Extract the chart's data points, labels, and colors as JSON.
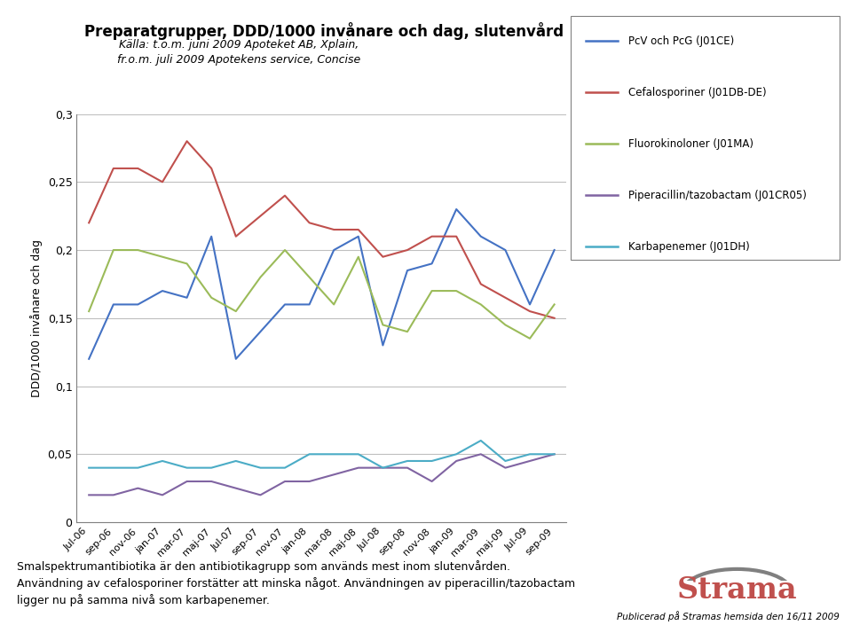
{
  "title": "Preparatgrupper, DDD/1000 invånare och dag, slutenvård",
  "subtitle1": "Källa: t.o.m. juni 2009 Apoteket AB, Xplain,",
  "subtitle2": "fr.o.m. juli 2009 Apotekens service, Concise",
  "ylabel": "DDD/1000 invånare och dag",
  "ylim": [
    0,
    0.3
  ],
  "yticks": [
    0,
    0.05,
    0.1,
    0.15,
    0.2,
    0.25,
    0.3
  ],
  "ytick_labels": [
    "0",
    "0,05",
    "0,1",
    "0,15",
    "0,2",
    "0,25",
    "0,3"
  ],
  "footer_line1": "Smalspektrumantibiotika är den antibiotikagrupp som används mest inom slutenvården.",
  "footer_line2": "Användning av cefalosporiner forstätter att minska något. Användningen av piperacillin/tazobactam",
  "footer_line3": "ligger nu på samma nivå som karbapenemer.",
  "published": "Publicerad på Stramas hemsida den 16/11 2009",
  "x_labels": [
    "Jul-06",
    "sep-06",
    "nov-06",
    "jan-07",
    "mar-07",
    "maj-07",
    "Jul-07",
    "sep-07",
    "nov-07",
    "jan-08",
    "mar-08",
    "maj-08",
    "Jul-08",
    "sep-08",
    "nov-08",
    "jan-09",
    "mar-09",
    "maj-09",
    "Jul-09",
    "sep-09"
  ],
  "series": {
    "PcV och PcG (J01CE)": {
      "color": "#4472C4",
      "values": [
        0.12,
        0.16,
        0.16,
        0.17,
        0.165,
        0.21,
        0.12,
        0.14,
        0.16,
        0.16,
        0.2,
        0.21,
        0.13,
        0.185,
        0.19,
        0.23,
        0.21,
        0.2,
        0.16,
        0.2
      ]
    },
    "Cefalosporiner (J01DB-DE)": {
      "color": "#C0504D",
      "values": [
        0.22,
        0.26,
        0.26,
        0.25,
        0.28,
        0.26,
        0.21,
        0.225,
        0.24,
        0.22,
        0.215,
        0.215,
        0.195,
        0.2,
        0.21,
        0.21,
        0.175,
        0.165,
        0.155,
        0.15
      ]
    },
    "Fluorokinoloner (J01MA)": {
      "color": "#9BBB59",
      "values": [
        0.155,
        0.2,
        0.2,
        0.195,
        0.19,
        0.165,
        0.155,
        0.18,
        0.2,
        0.18,
        0.16,
        0.195,
        0.145,
        0.14,
        0.17,
        0.17,
        0.16,
        0.145,
        0.135,
        0.16
      ]
    },
    "Piperacillin/tazobactam (J01CR05)": {
      "color": "#8064A2",
      "values": [
        0.02,
        0.02,
        0.025,
        0.02,
        0.03,
        0.03,
        0.025,
        0.02,
        0.03,
        0.03,
        0.035,
        0.04,
        0.04,
        0.04,
        0.03,
        0.045,
        0.05,
        0.04,
        0.045,
        0.05
      ]
    },
    "Karbapenemer (J01DH)": {
      "color": "#4BACC6",
      "values": [
        0.04,
        0.04,
        0.04,
        0.045,
        0.04,
        0.04,
        0.045,
        0.04,
        0.04,
        0.05,
        0.05,
        0.05,
        0.04,
        0.045,
        0.045,
        0.05,
        0.06,
        0.045,
        0.05,
        0.05
      ]
    }
  },
  "legend_entries": [
    "PcV och PcG (J01CE)",
    "Cefalosporiner (J01DB-DE)",
    "Fluorokinoloner (J01MA)",
    "Piperacillin/tazobactam (J01CR05)",
    "Karbapenemer (J01DH)"
  ]
}
